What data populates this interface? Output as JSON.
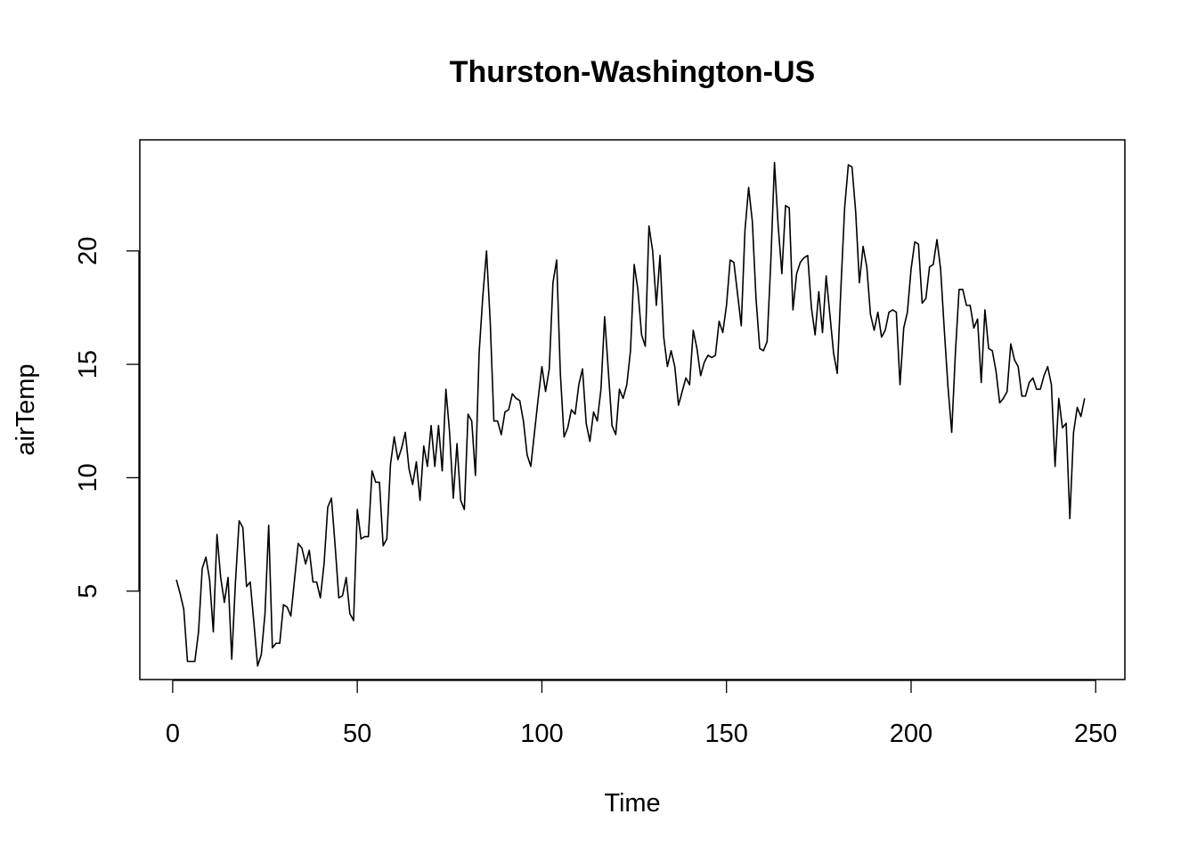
{
  "chart_data": {
    "type": "line",
    "title": "Thurston-Washington-US",
    "xlabel": "Time",
    "ylabel": "airTemp",
    "xlim": [
      -8.9,
      257.9
    ],
    "ylim": [
      1.1,
      24.9
    ],
    "xticks": [
      0,
      50,
      100,
      150,
      200,
      250
    ],
    "yticks": [
      5,
      10,
      15,
      20
    ],
    "grid": false,
    "series": [
      {
        "x_start": 1,
        "values": [
          5.5,
          4.9,
          4.2,
          1.9,
          1.9,
          1.9,
          3.2,
          6.0,
          6.5,
          5.5,
          3.2,
          7.5,
          5.6,
          4.5,
          5.6,
          2.0,
          5.4,
          8.1,
          7.8,
          5.2,
          5.4,
          3.6,
          1.7,
          2.2,
          4.0,
          7.9,
          2.5,
          2.7,
          2.7,
          4.4,
          4.3,
          3.9,
          5.5,
          7.1,
          6.9,
          6.2,
          6.8,
          5.4,
          5.4,
          4.7,
          6.2,
          8.7,
          9.1,
          7.0,
          4.7,
          4.8,
          5.6,
          4.0,
          3.7,
          8.6,
          7.3,
          7.4,
          7.4,
          10.3,
          9.8,
          9.8,
          7.0,
          7.3,
          10.6,
          11.8,
          10.8,
          11.3,
          12.0,
          10.4,
          9.7,
          10.7,
          9.0,
          11.4,
          10.5,
          12.3,
          10.5,
          12.3,
          10.3,
          13.9,
          12.0,
          9.1,
          11.5,
          9.0,
          8.6,
          12.8,
          12.5,
          10.1,
          15.5,
          18.0,
          20.0,
          16.9,
          12.5,
          12.5,
          11.9,
          12.9,
          13.0,
          13.7,
          13.5,
          13.4,
          12.5,
          11.0,
          10.5,
          12.0,
          13.5,
          14.9,
          13.8,
          14.8,
          18.6,
          19.6,
          14.6,
          11.8,
          12.2,
          13.0,
          12.8,
          14.1,
          14.8,
          12.4,
          11.6,
          12.9,
          12.5,
          13.9,
          17.1,
          14.7,
          12.3,
          11.9,
          13.9,
          13.5,
          14.1,
          15.6,
          19.4,
          18.3,
          16.3,
          15.8,
          21.1,
          20.0,
          17.6,
          19.8,
          16.2,
          14.9,
          15.6,
          14.9,
          13.2,
          13.8,
          14.4,
          14.1,
          16.5,
          15.7,
          14.5,
          15.1,
          15.4,
          15.3,
          15.4,
          16.9,
          16.4,
          17.6,
          19.6,
          19.5,
          18.1,
          16.7,
          20.9,
          22.8,
          21.3,
          17.9,
          15.7,
          15.6,
          16.0,
          19.5,
          23.9,
          21.1,
          19.0,
          22.0,
          21.9,
          17.4,
          19.0,
          19.5,
          19.7,
          19.8,
          17.5,
          16.3,
          18.2,
          16.4,
          18.9,
          17.2,
          15.5,
          14.6,
          18.4,
          21.9,
          23.8,
          23.7,
          21.7,
          18.6,
          20.2,
          19.3,
          17.2,
          16.5,
          17.3,
          16.2,
          16.5,
          17.3,
          17.4,
          17.3,
          14.1,
          16.6,
          17.3,
          19.2,
          20.4,
          20.3,
          17.7,
          17.9,
          19.3,
          19.4,
          20.5,
          19.2,
          16.5,
          14.0,
          12.0,
          15.5,
          18.3,
          18.3,
          17.6,
          17.6,
          16.6,
          17.0,
          14.2,
          17.4,
          15.7,
          15.6,
          14.7,
          13.3,
          13.5,
          13.8,
          15.9,
          15.2,
          14.9,
          13.6,
          13.6,
          14.2,
          14.4,
          13.9,
          13.9,
          14.5,
          14.9,
          14.1,
          10.5,
          13.5,
          12.2,
          12.4,
          8.2,
          12.0,
          13.1,
          12.7,
          13.5
        ]
      }
    ]
  }
}
